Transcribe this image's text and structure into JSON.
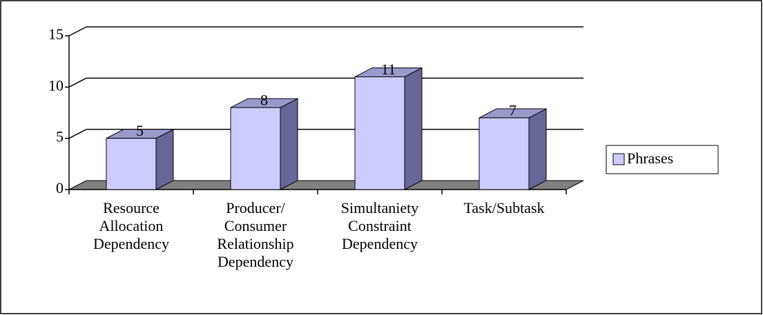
{
  "chart_data": {
    "type": "bar3d",
    "categories": [
      "Resource Allocation Dependency",
      "Producer/ Consumer Relationship Dependency",
      "Simultaniety Constraint Dependency",
      "Task/Subtask"
    ],
    "series": [
      {
        "name": "Phrases",
        "color": "#ccccff",
        "values": [
          5,
          8,
          11,
          7
        ]
      }
    ],
    "ylim": [
      0,
      15
    ],
    "yticks": [
      0,
      5,
      10,
      15
    ],
    "grid": true,
    "legend": "right"
  }
}
